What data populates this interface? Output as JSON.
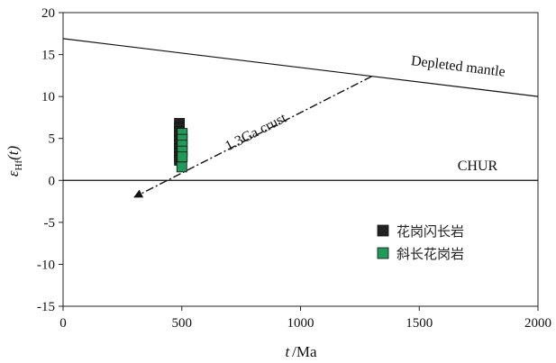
{
  "chart_data": {
    "type": "scatter",
    "xlabel_var": "t",
    "xlabel_unit": "/Ma",
    "ylabel_sym": "ε",
    "ylabel_sub": "Hf",
    "ylabel_arg": "(t)",
    "xlim": [
      0,
      2000
    ],
    "ylim": [
      -15,
      20
    ],
    "xticks": [
      0,
      500,
      1000,
      1500,
      2000
    ],
    "yticks": [
      -15,
      -10,
      -5,
      0,
      5,
      10,
      15,
      20
    ],
    "grid": false,
    "legend_position": "lower-right",
    "series": [
      {
        "name": "花岗闪长岩",
        "color": "#222222",
        "marker": "square",
        "points": [
          {
            "x": 490,
            "y": 6.8
          },
          {
            "x": 490,
            "y": 6.3
          },
          {
            "x": 490,
            "y": 5.8
          },
          {
            "x": 490,
            "y": 5.3
          },
          {
            "x": 490,
            "y": 4.8
          },
          {
            "x": 490,
            "y": 4.3
          },
          {
            "x": 490,
            "y": 3.8
          },
          {
            "x": 490,
            "y": 3.3
          },
          {
            "x": 490,
            "y": 2.8
          },
          {
            "x": 490,
            "y": 2.4
          }
        ]
      },
      {
        "name": "斜长花岗岩",
        "color": "#1f9b57",
        "marker": "square",
        "points": [
          {
            "x": 502,
            "y": 5.6
          },
          {
            "x": 502,
            "y": 4.9
          },
          {
            "x": 502,
            "y": 4.2
          },
          {
            "x": 502,
            "y": 3.5
          },
          {
            "x": 502,
            "y": 2.8
          },
          {
            "x": 500,
            "y": 1.6
          }
        ]
      }
    ],
    "reference_lines": [
      {
        "label": "Depleted mantle",
        "x": [
          0,
          2000
        ],
        "y": [
          16.9,
          10.0
        ],
        "style": "solid"
      },
      {
        "label": "CHUR",
        "x": [
          0,
          2000
        ],
        "y": [
          0,
          0
        ],
        "style": "solid"
      },
      {
        "label": "1.3Ga crust",
        "x": [
          1300,
          300
        ],
        "y": [
          12.4,
          -2.0
        ],
        "style": "dash-dot",
        "arrow_end": true
      }
    ]
  }
}
